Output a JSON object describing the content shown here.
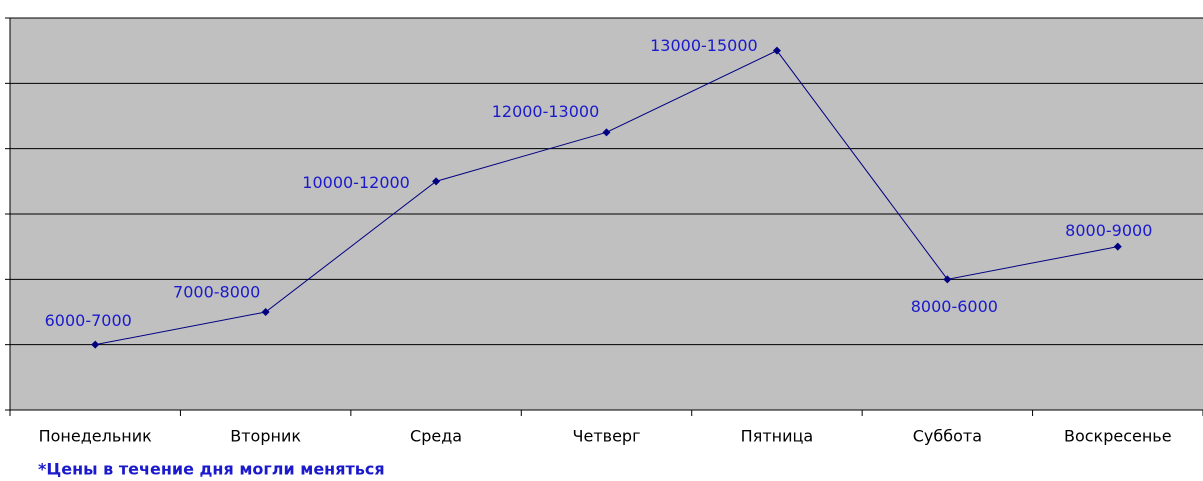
{
  "chart_data": {
    "type": "line",
    "categories": [
      "Понедельник",
      "Вторник",
      "Среда",
      "Четверг",
      "Пятница",
      "Суббота",
      "Воскресенье"
    ],
    "series": [
      {
        "color": "#000080",
        "values": [
          1,
          1.5,
          3.5,
          4.25,
          5.5,
          2,
          2.5
        ],
        "value_labels": [
          "6000-7000",
          "7000-8000",
          "10000-12000",
          "12000-13000",
          "13000-15000",
          "8000-6000",
          "8000-9000"
        ]
      }
    ],
    "ylim": [
      0,
      6
    ],
    "yticks": [
      0,
      1,
      2,
      3,
      4,
      5,
      6
    ],
    "grid": true,
    "plot_color": "#c0c0c0",
    "note": "*Цены в течение дня могли меняться"
  }
}
